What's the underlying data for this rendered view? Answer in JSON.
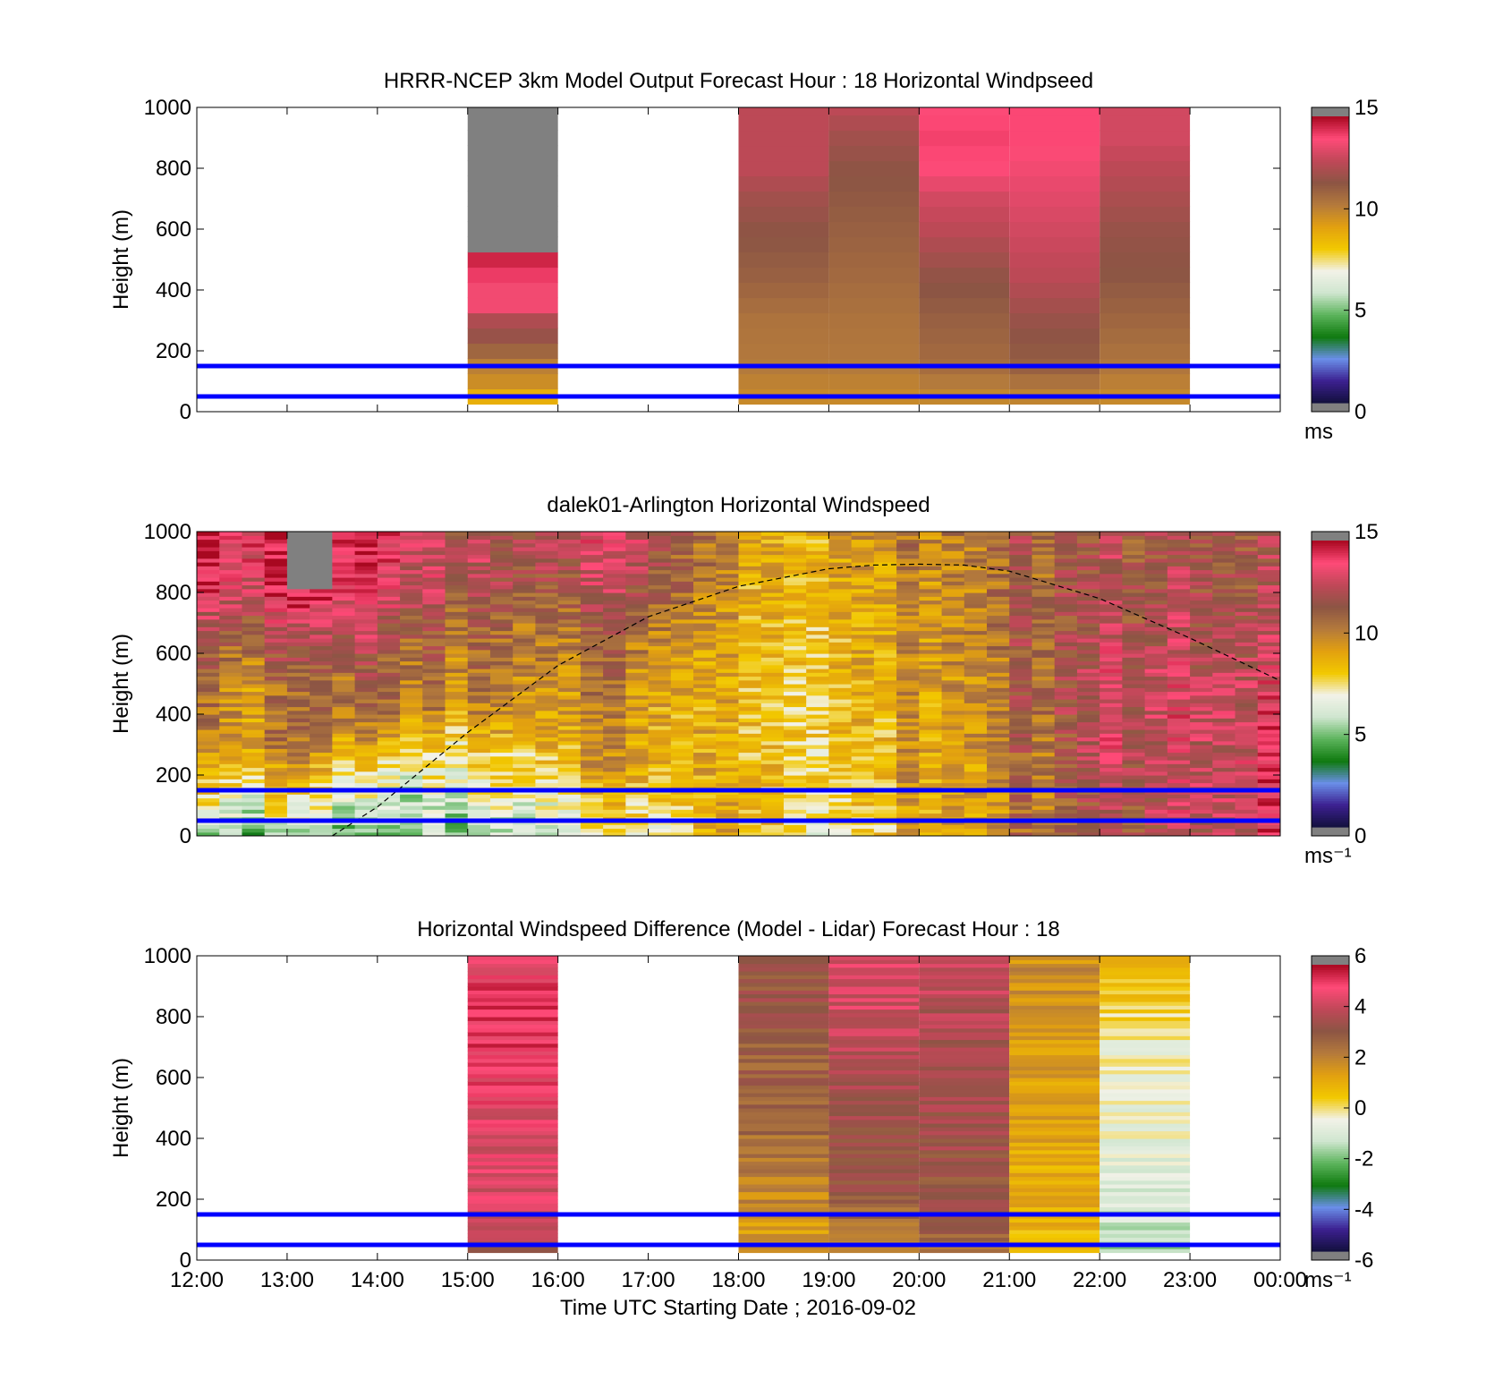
{
  "colors": {
    "level_line": "#0000ff",
    "missing": "#808080",
    "cmap_stops": [
      "#808080",
      "#12103c",
      "#3c2090",
      "#6a8ee8",
      "#0f7a0f",
      "#5cb45c",
      "#cfe6cf",
      "#f2f2e8",
      "#f2c800",
      "#e2a010",
      "#b47a3c",
      "#8c5544",
      "#c04858",
      "#ff4a78",
      "#a80820",
      "#808080"
    ]
  },
  "figure": {
    "xlabel": "Time UTC  Starting Date ; 2016-09-02"
  },
  "chart_data": [
    {
      "type": "heatmap",
      "title": "HRRR-NCEP 3km Model Output   Forecast Hour : 18 Horizontal Windpseed",
      "ylabel": "Height (m)",
      "xlim": [
        "12:00",
        "00:00"
      ],
      "ylim": [
        0,
        1000
      ],
      "yticks": [
        0,
        200,
        400,
        600,
        800,
        1000
      ],
      "xticks": [
        "12:00",
        "13:00",
        "14:00",
        "15:00",
        "16:00",
        "17:00",
        "18:00",
        "19:00",
        "20:00",
        "21:00",
        "22:00",
        "23:00",
        "00:00"
      ],
      "colorbar": {
        "range": [
          0,
          15
        ],
        "ticks": [
          "0",
          "5",
          "10",
          "15"
        ],
        "label": "ms"
      },
      "reference_lines_m": [
        50,
        150
      ],
      "columns": [
        {
          "start": "15:00",
          "end": "16:00",
          "profile": [
            [
              25,
              6.7
            ],
            [
              50,
              8.8
            ],
            [
              75,
              9.5
            ],
            [
              100,
              9.8
            ],
            [
              150,
              10.2
            ],
            [
              200,
              11.0
            ],
            [
              250,
              11.8
            ],
            [
              300,
              12.3
            ],
            [
              350,
              13.6
            ],
            [
              400,
              13.6
            ],
            [
              450,
              14.1
            ],
            [
              500,
              14.5
            ],
            [
              1000,
              "missing"
            ]
          ]
        },
        {
          "start": "18:00",
          "end": "19:00",
          "profile": [
            [
              25,
              9.8
            ],
            [
              150,
              10.4
            ],
            [
              300,
              10.6
            ],
            [
              450,
              11.2
            ],
            [
              600,
              11.6
            ],
            [
              700,
              12.0
            ],
            [
              800,
              12.6
            ],
            [
              1000,
              12.6
            ]
          ]
        },
        {
          "start": "19:00",
          "end": "20:00",
          "profile": [
            [
              25,
              9.8
            ],
            [
              150,
              10.4
            ],
            [
              300,
              10.6
            ],
            [
              450,
              10.9
            ],
            [
              600,
              11.2
            ],
            [
              800,
              11.6
            ],
            [
              900,
              12.0
            ],
            [
              1000,
              12.6
            ]
          ]
        },
        {
          "start": "20:00",
          "end": "21:00",
          "profile": [
            [
              25,
              9.8
            ],
            [
              150,
              10.8
            ],
            [
              300,
              11.2
            ],
            [
              450,
              11.7
            ],
            [
              600,
              12.6
            ],
            [
              700,
              13.0
            ],
            [
              800,
              13.8
            ],
            [
              900,
              14.0
            ],
            [
              1000,
              13.8
            ]
          ]
        },
        {
          "start": "21:00",
          "end": "22:00",
          "profile": [
            [
              25,
              9.8
            ],
            [
              150,
              11.2
            ],
            [
              300,
              11.8
            ],
            [
              450,
              12.6
            ],
            [
              600,
              13.0
            ],
            [
              800,
              13.6
            ],
            [
              900,
              13.9
            ],
            [
              1000,
              13.9
            ]
          ]
        },
        {
          "start": "22:00",
          "end": "23:00",
          "profile": [
            [
              25,
              9.8
            ],
            [
              150,
              10.5
            ],
            [
              300,
              11.0
            ],
            [
              450,
              11.5
            ],
            [
              600,
              11.8
            ],
            [
              800,
              12.6
            ],
            [
              900,
              13.0
            ],
            [
              1000,
              13.0
            ]
          ]
        }
      ]
    },
    {
      "type": "heatmap",
      "title": "dalek01-Arlington  Horizontal Windspeed",
      "ylabel": "Height (m)",
      "xlim": [
        "12:00",
        "00:00"
      ],
      "ylim": [
        0,
        1000
      ],
      "yticks": [
        0,
        200,
        400,
        600,
        800,
        1000
      ],
      "xticks": [
        "12:00",
        "13:00",
        "14:00",
        "15:00",
        "16:00",
        "17:00",
        "18:00",
        "19:00",
        "20:00",
        "21:00",
        "22:00",
        "23:00",
        "00:00"
      ],
      "colorbar": {
        "range": [
          0,
          15
        ],
        "ticks": [
          "0",
          "5",
          "10",
          "15"
        ],
        "label": "ms⁻¹"
      },
      "reference_lines_m": [
        50,
        150
      ],
      "boundary_layer_curve": {
        "style": "dashed",
        "x_hours": [
          13.5,
          14,
          15,
          16,
          17,
          18,
          19,
          19.5,
          20,
          20.5,
          21,
          22,
          23,
          24
        ],
        "height_m": [
          0,
          95,
          340,
          560,
          720,
          820,
          878,
          890,
          893,
          890,
          870,
          780,
          650,
          510
        ]
      },
      "column_profiles": {
        "12:00": [
          [
            0,
            5
          ],
          [
            150,
            7.5
          ],
          [
            300,
            9.5
          ],
          [
            500,
            10.2
          ],
          [
            700,
            11.5
          ],
          [
            800,
            13.5
          ],
          [
            1000,
            14.4
          ]
        ],
        "13:00": [
          [
            0,
            5
          ],
          [
            150,
            7.5
          ],
          [
            300,
            9.8
          ],
          [
            500,
            10.0
          ],
          [
            700,
            12.4
          ],
          [
            800,
            13.8
          ],
          [
            1000,
            "missing"
          ]
        ],
        "14:00": [
          [
            0,
            5
          ],
          [
            200,
            7.2
          ],
          [
            400,
            10.8
          ],
          [
            600,
            11.8
          ],
          [
            800,
            14.0
          ],
          [
            1000,
            14.4
          ]
        ],
        "15:00": [
          [
            0,
            5.2
          ],
          [
            250,
            7.2
          ],
          [
            450,
            9.8
          ],
          [
            650,
            10.5
          ],
          [
            850,
            11.6
          ],
          [
            1000,
            12.0
          ]
        ],
        "16:00": [
          [
            0,
            6.0
          ],
          [
            150,
            7.8
          ],
          [
            300,
            9.3
          ],
          [
            500,
            10.2
          ],
          [
            700,
            11.3
          ],
          [
            900,
            12.6
          ],
          [
            1000,
            13.0
          ]
        ],
        "17:00": [
          [
            0,
            7.4
          ],
          [
            200,
            9.4
          ],
          [
            400,
            9.7
          ],
          [
            600,
            10.3
          ],
          [
            800,
            12.4
          ],
          [
            1000,
            13.4
          ]
        ],
        "18:00": [
          [
            0,
            9.6
          ],
          [
            300,
            9.2
          ],
          [
            500,
            9.0
          ],
          [
            700,
            9.5
          ],
          [
            900,
            9.7
          ],
          [
            1000,
            9.8
          ]
        ],
        "19:00": [
          [
            0,
            7.4
          ],
          [
            200,
            8.2
          ],
          [
            400,
            8.4
          ],
          [
            600,
            8.6
          ],
          [
            800,
            9.0
          ],
          [
            1000,
            9.2
          ]
        ],
        "20:00": [
          [
            0,
            9.2
          ],
          [
            200,
            9.3
          ],
          [
            400,
            9.4
          ],
          [
            600,
            9.8
          ],
          [
            800,
            10.0
          ],
          [
            1000,
            10.4
          ]
        ],
        "21:00": [
          [
            0,
            10.0
          ],
          [
            200,
            10.2
          ],
          [
            400,
            10.6
          ],
          [
            600,
            10.8
          ],
          [
            800,
            11.0
          ],
          [
            1000,
            11.2
          ]
        ],
        "22:00": [
          [
            0,
            11.6
          ],
          [
            200,
            12.6
          ],
          [
            400,
            12.8
          ],
          [
            600,
            12.6
          ],
          [
            800,
            12.2
          ],
          [
            1000,
            12.0
          ]
        ],
        "23:00": [
          [
            0,
            13.2
          ],
          [
            200,
            13.4
          ],
          [
            400,
            13.6
          ],
          [
            600,
            13.2
          ],
          [
            800,
            12.6
          ],
          [
            1000,
            12.4
          ]
        ],
        "24:00": [
          [
            0,
            13.4
          ],
          [
            200,
            13.6
          ],
          [
            400,
            13.2
          ],
          [
            600,
            12.6
          ],
          [
            800,
            11.8
          ],
          [
            1000,
            11.6
          ]
        ]
      }
    },
    {
      "type": "heatmap",
      "title": "Horizontal Windspeed Difference (Model - Lidar) Forecast Hour : 18",
      "ylabel": "Height (m)",
      "xlabel": "Time UTC  Starting Date ; 2016-09-02",
      "xlim": [
        "12:00",
        "00:00"
      ],
      "ylim": [
        0,
        1000
      ],
      "yticks": [
        0,
        200,
        400,
        600,
        800,
        1000
      ],
      "xticks": [
        "12:00",
        "13:00",
        "14:00",
        "15:00",
        "16:00",
        "17:00",
        "18:00",
        "19:00",
        "20:00",
        "21:00",
        "22:00",
        "23:00",
        "00:00"
      ],
      "colorbar": {
        "range": [
          -6,
          6
        ],
        "ticks": [
          "-6",
          "-4",
          "-2",
          "0",
          "2",
          "4",
          "6"
        ],
        "label": "ms⁻¹"
      },
      "reference_lines_m": [
        50,
        150
      ],
      "columns": [
        {
          "start": "15:00",
          "end": "16:00",
          "profile": [
            [
              25,
              3.6
            ],
            [
              120,
              3.8
            ],
            [
              200,
              4.6
            ],
            [
              400,
              4.6
            ],
            [
              600,
              5.0
            ],
            [
              800,
              5.4
            ],
            [
              1000,
              4.8
            ]
          ]
        },
        {
          "start": "18:00",
          "end": "19:00",
          "profile": [
            [
              25,
              1.6
            ],
            [
              120,
              1.6
            ],
            [
              300,
              2.4
            ],
            [
              500,
              2.8
            ],
            [
              700,
              3.0
            ],
            [
              850,
              3.3
            ],
            [
              1000,
              3.4
            ]
          ]
        },
        {
          "start": "19:00",
          "end": "20:00",
          "profile": [
            [
              25,
              1.6
            ],
            [
              120,
              2.6
            ],
            [
              300,
              3.4
            ],
            [
              500,
              3.5
            ],
            [
              700,
              4.2
            ],
            [
              850,
              4.4
            ],
            [
              1000,
              4.6
            ]
          ]
        },
        {
          "start": "20:00",
          "end": "21:00",
          "profile": [
            [
              25,
              2.6
            ],
            [
              120,
              3.2
            ],
            [
              300,
              3.4
            ],
            [
              500,
              3.6
            ],
            [
              700,
              3.8
            ],
            [
              850,
              4.0
            ],
            [
              1000,
              4.2
            ]
          ]
        },
        {
          "start": "21:00",
          "end": "22:00",
          "profile": [
            [
              25,
              0.8
            ],
            [
              120,
              1.0
            ],
            [
              300,
              1.0
            ],
            [
              500,
              1.4
            ],
            [
              700,
              1.6
            ],
            [
              850,
              1.8
            ],
            [
              1000,
              1.8
            ]
          ]
        },
        {
          "start": "22:00",
          "end": "23:00",
          "profile": [
            [
              25,
              -1.8
            ],
            [
              120,
              -1.2
            ],
            [
              300,
              -0.8
            ],
            [
              500,
              -0.6
            ],
            [
              700,
              -0.4
            ],
            [
              850,
              0.3
            ],
            [
              1000,
              1.0
            ]
          ]
        }
      ]
    }
  ]
}
